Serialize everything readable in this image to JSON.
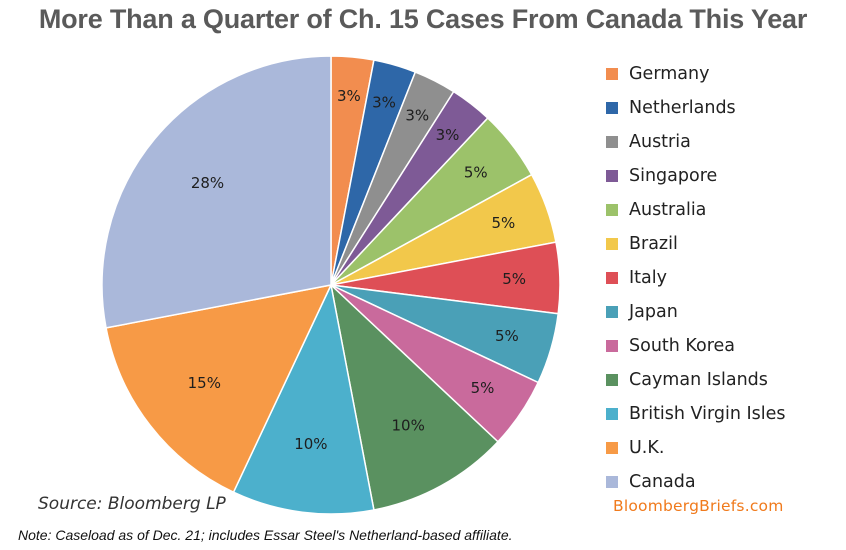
{
  "title": "More Than a Quarter of Ch. 15 Cases From Canada This Year",
  "source": "Source: Bloomberg LP",
  "brand": "BloombergBriefs.com",
  "note": "Note: Caseload as of Dec. 21; includes Essar Steel's Netherland-based affiliate.",
  "chart_data": {
    "type": "pie",
    "title": "More Than a Quarter of Ch. 15 Cases From Canada This Year",
    "legend_position": "right",
    "start": "12 o'clock, clockwise",
    "slices": [
      {
        "label": "Germany",
        "value": 3,
        "data_label": "3%",
        "color": "#f28d4f"
      },
      {
        "label": "Netherlands",
        "value": 3,
        "data_label": "3%",
        "color": "#2e67a8"
      },
      {
        "label": "Austria",
        "value": 3,
        "data_label": "3%",
        "color": "#8f8f8f"
      },
      {
        "label": "Singapore",
        "value": 3,
        "data_label": "3%",
        "color": "#7e5a96"
      },
      {
        "label": "Australia",
        "value": 5,
        "data_label": "5%",
        "color": "#9cc26a"
      },
      {
        "label": "Brazil",
        "value": 5,
        "data_label": "5%",
        "color": "#f2c84b"
      },
      {
        "label": "Italy",
        "value": 5,
        "data_label": "5%",
        "color": "#de4f56"
      },
      {
        "label": "Japan",
        "value": 5,
        "data_label": "5%",
        "color": "#4aa0b7"
      },
      {
        "label": "South Korea",
        "value": 5,
        "data_label": "5%",
        "color": "#c96a9c"
      },
      {
        "label": "Cayman Islands",
        "value": 10,
        "data_label": "10%",
        "color": "#5a9160"
      },
      {
        "label": "British Virgin Isles",
        "value": 10,
        "data_label": "10%",
        "color": "#4cb0cc"
      },
      {
        "label": "U.K.",
        "value": 15,
        "data_label": "15%",
        "color": "#f79a46"
      },
      {
        "label": "Canada",
        "value": 28,
        "data_label": "28%",
        "color": "#aab8da"
      }
    ]
  }
}
